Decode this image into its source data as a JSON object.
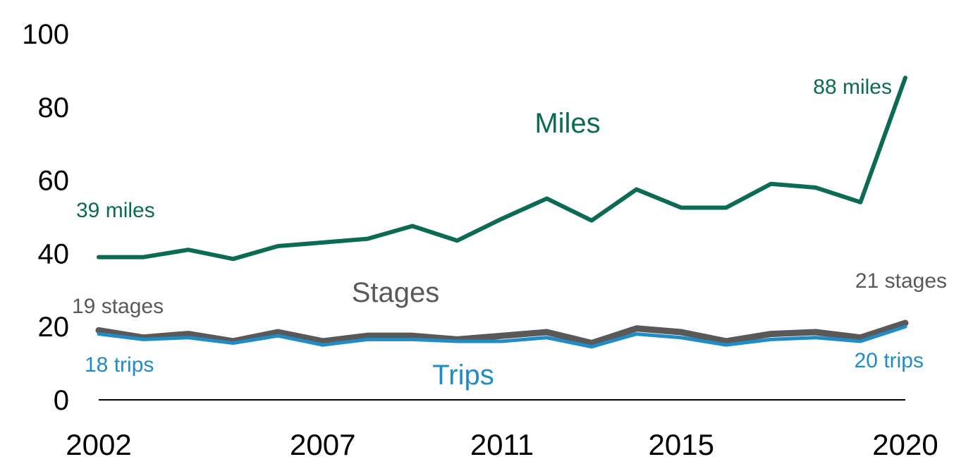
{
  "chart_data": {
    "type": "line",
    "title": "",
    "xlabel": "",
    "ylabel": "",
    "x": [
      2002,
      2003,
      2004,
      2005,
      2006,
      2007,
      2008,
      2009,
      2010,
      2011,
      2012,
      2013,
      2014,
      2015,
      2016,
      2017,
      2018,
      2019,
      2020
    ],
    "x_tick_labels": [
      "2002",
      "2007",
      "2011",
      "2015",
      "2020"
    ],
    "x_tick_values": [
      2002,
      2007,
      2011,
      2015,
      2020
    ],
    "y_tick_labels": [
      "0",
      "20",
      "40",
      "60",
      "80",
      "100"
    ],
    "ylim": [
      0,
      100
    ],
    "xlim": [
      2002,
      2020
    ],
    "grid": false,
    "series": [
      {
        "name": "Miles",
        "color": "#0b6b55",
        "values": [
          39,
          39,
          41,
          38.5,
          42,
          43,
          44,
          47.5,
          43.5,
          49.5,
          55,
          49,
          57.5,
          52.5,
          52.5,
          59,
          58,
          54,
          88
        ],
        "start_label": "39 miles",
        "end_label": "88 miles"
      },
      {
        "name": "Stages",
        "color": "#595959",
        "values": [
          19,
          17,
          18,
          16,
          18.5,
          16,
          17.5,
          17.5,
          16.5,
          17.5,
          18.5,
          15.5,
          19.5,
          18.5,
          16,
          18,
          18.5,
          17,
          21
        ],
        "start_label": "19 stages",
        "end_label": "21 stages"
      },
      {
        "name": "Trips",
        "color": "#1f8bc7",
        "values": [
          18,
          16.5,
          17,
          15.5,
          17.5,
          15,
          16.5,
          16.5,
          16,
          16,
          17,
          14.5,
          18,
          17,
          15,
          16.5,
          17,
          16,
          20
        ],
        "start_label": "18 trips",
        "end_label": "20 trips"
      }
    ]
  }
}
